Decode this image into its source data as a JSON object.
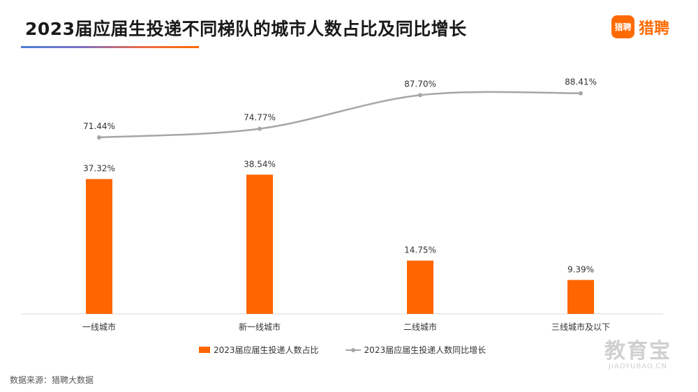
{
  "title": "2023届应届生投递不同梯队的城市人数占比及同比增长",
  "logo": {
    "icon_text": "猎聘",
    "text": "猎聘"
  },
  "source": "数据来源：猎聘大数据",
  "watermark": {
    "cn": "教育宝",
    "en": "JIAOYUBAO.CN"
  },
  "chart_data": {
    "type": "bar",
    "categories": [
      "一线城市",
      "新一线城市",
      "二线城市",
      "三线城市及以下"
    ],
    "series": [
      {
        "name": "2023届应届生投递人数占比",
        "type": "bar",
        "color": "#ff6600",
        "values": [
          37.32,
          38.54,
          14.75,
          9.39
        ],
        "labels": [
          "37.32%",
          "38.54%",
          "14.75%",
          "9.39%"
        ]
      },
      {
        "name": "2023届应届生投递人数同比增长",
        "type": "line",
        "color": "#a6a6a6",
        "values": [
          71.44,
          74.77,
          87.7,
          88.41
        ],
        "labels": [
          "71.44%",
          "74.77%",
          "87.70%",
          "88.41%"
        ]
      }
    ],
    "legend": "bottom"
  }
}
